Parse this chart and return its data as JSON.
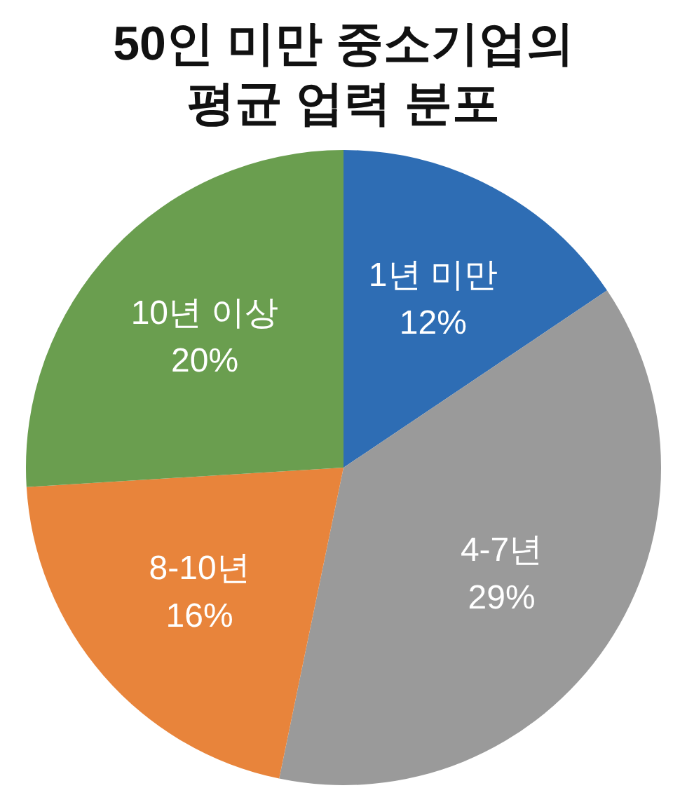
{
  "chart_data": {
    "type": "pie",
    "title": "50인 미만 중소기업의\n평균 업력 분포",
    "categories": [
      "1년 미만",
      "4-7년",
      "8-10년",
      "10년 이상"
    ],
    "values": [
      12,
      29,
      16,
      20
    ],
    "value_labels": [
      "12%",
      "29%",
      "16%",
      "20%"
    ],
    "colors": [
      "#2e6db4",
      "#9a9a9a",
      "#e8843b",
      "#6a9e4f"
    ],
    "legend": false
  }
}
